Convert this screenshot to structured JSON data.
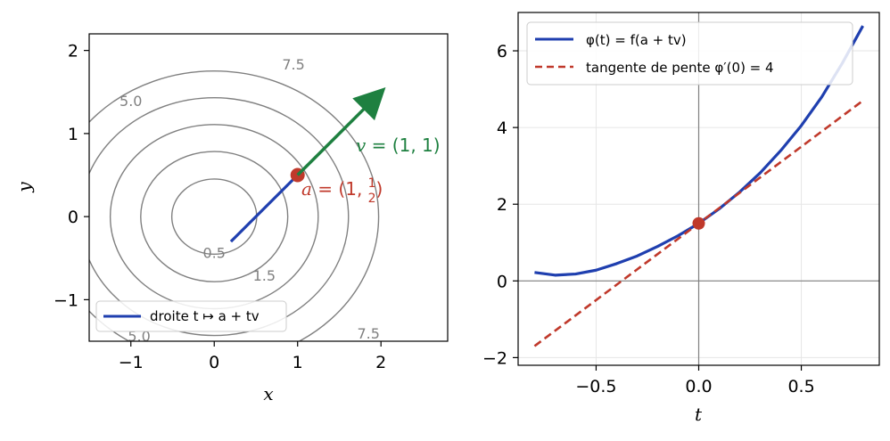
{
  "chart_data": [
    {
      "type": "contour",
      "xlabel": "x",
      "ylabel": "y",
      "xlim": [
        -1.5,
        2.8
      ],
      "ylim": [
        -1.5,
        2.2
      ],
      "xticks": [
        -1,
        0,
        1,
        2
      ],
      "yticks": [
        -1,
        0,
        1,
        2
      ],
      "xtick_labels": [
        "−1",
        "0",
        "1",
        "2"
      ],
      "ytick_labels": [
        "−1",
        "0",
        "1",
        "2"
      ],
      "grid": false,
      "contour_levels": [
        0.5,
        1.5,
        3.0,
        5.0,
        7.5
      ],
      "contour_labels": [
        {
          "text": "0.5",
          "x": 0.0,
          "y": -0.45
        },
        {
          "text": "1.5",
          "x": 0.6,
          "y": -0.72
        },
        {
          "text": "5.0",
          "x": -1.0,
          "y": 1.38
        },
        {
          "text": "7.5",
          "x": 0.95,
          "y": 1.82
        },
        {
          "text": "7.5",
          "x": 1.85,
          "y": -1.42
        },
        {
          "text": "5.0",
          "x": -0.9,
          "y": -1.45
        }
      ],
      "series": [
        {
          "name": "droite t ↦ a + tv",
          "color": "#1f3faf",
          "x": [
            0.2,
            1.0
          ],
          "y": [
            -0.3,
            0.5
          ]
        }
      ],
      "point": {
        "label": "a = (1, 1/2)",
        "x": 1.0,
        "y": 0.5,
        "color": "#c0392b"
      },
      "arrow": {
        "label": "v = (1, 1)",
        "from": [
          1.0,
          0.5
        ],
        "to": [
          1.95,
          1.45
        ],
        "color": "#1e8040"
      },
      "legend": {
        "position": "lower-left",
        "entries": [
          "droite t ↦ a + tv"
        ]
      }
    },
    {
      "type": "line",
      "xlabel": "t",
      "ylabel": "",
      "xlim": [
        -0.88,
        0.88
      ],
      "ylim": [
        -2.2,
        7.0
      ],
      "xticks": [
        -0.5,
        0.0,
        0.5
      ],
      "yticks": [
        -2,
        0,
        2,
        4,
        6
      ],
      "xtick_labels": [
        "−0.5",
        "0.0",
        "0.5"
      ],
      "ytick_labels": [
        "−2",
        "0",
        "2",
        "4",
        "6"
      ],
      "grid": true,
      "series": [
        {
          "name": "φ(t) = f(a + tv)",
          "color": "#1f3faf",
          "style": "solid",
          "x": [
            -0.8,
            -0.7,
            -0.6,
            -0.5,
            -0.4,
            -0.3,
            -0.2,
            -0.1,
            0.0,
            0.1,
            0.2,
            0.3,
            0.4,
            0.5,
            0.6,
            0.7,
            0.8
          ],
          "y": [
            0.22,
            0.15,
            0.18,
            0.28,
            0.45,
            0.65,
            0.9,
            1.18,
            1.5,
            1.88,
            2.32,
            2.82,
            3.4,
            4.05,
            4.8,
            5.68,
            6.65
          ]
        },
        {
          "name": "tangente de pente φ′(0) = 4",
          "color": "#c0392b",
          "style": "dashed",
          "x": [
            -0.8,
            0.8
          ],
          "y": [
            -1.7,
            4.7
          ]
        }
      ],
      "point": {
        "x": 0.0,
        "y": 1.5,
        "color": "#c0392b"
      },
      "legend": {
        "position": "top-left",
        "entries": [
          "φ(t) = f(a + tv)",
          "tangente de pente φ′(0) = 4"
        ]
      }
    }
  ]
}
